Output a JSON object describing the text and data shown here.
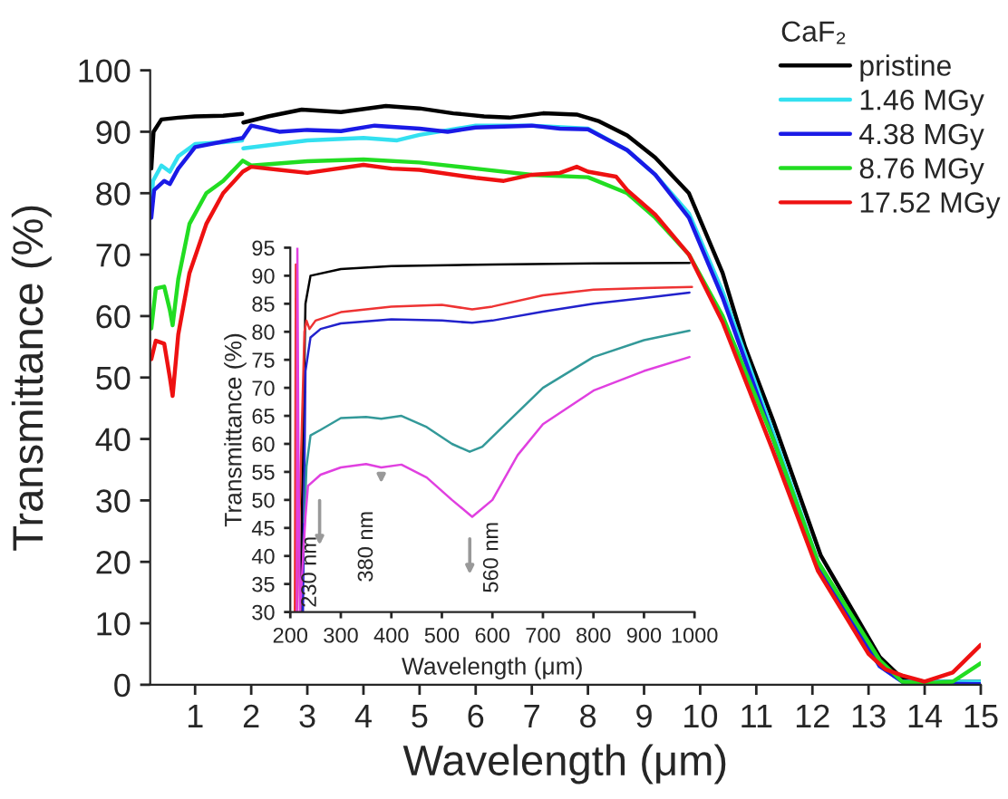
{
  "chart_data": [
    {
      "type": "line",
      "xlabel": "Wavelength (μm)",
      "ylabel": "Transmittance (%)",
      "legend_title": "CaF₂",
      "legend": "top right",
      "xlim": [
        0.2,
        15
      ],
      "xticks": [
        1,
        2,
        3,
        4,
        5,
        6,
        7,
        8,
        9,
        10,
        11,
        12,
        13,
        14,
        15
      ],
      "ylim": [
        0,
        100
      ],
      "yticks": [
        0,
        10,
        20,
        30,
        40,
        50,
        60,
        70,
        80,
        90,
        100
      ],
      "series": [
        {
          "name": "pristine",
          "color": "#000000",
          "x": [
            0.22,
            0.26,
            0.4,
            0.7,
            1.0,
            1.5,
            1.84,
            1.85,
            1.86,
            2.3,
            2.9,
            3.6,
            4.4,
            5.0,
            5.6,
            6.15,
            6.6,
            7.2,
            7.8,
            8.2,
            8.7,
            9.2,
            9.8,
            10.4,
            10.8,
            11.3,
            12.15,
            13.2,
            13.6,
            14.0,
            15.0
          ],
          "values": [
            84,
            90,
            92,
            92.3,
            92.5,
            92.6,
            92.9,
            null,
            91.5,
            92.5,
            93.6,
            93.2,
            94.2,
            93.8,
            93,
            92.5,
            92.3,
            93,
            92.8,
            91.7,
            89.4,
            85.8,
            80,
            67,
            55,
            43,
            21,
            4.5,
            1,
            0.5,
            0.5
          ]
        },
        {
          "name": "1.46 MGy",
          "color": "#33e0f0",
          "x": [
            0.22,
            0.25,
            0.4,
            0.55,
            0.7,
            1.0,
            1.5,
            1.84,
            1.85,
            1.86,
            3.0,
            4.0,
            4.6,
            5.0,
            6.0,
            7.0,
            8.0,
            8.7,
            9.2,
            9.8,
            10.4,
            11.3,
            12.1,
            13.2,
            13.6,
            15.0
          ],
          "values": [
            78,
            82,
            84.5,
            83.5,
            86,
            88,
            88.3,
            88.6,
            null,
            87.3,
            88.6,
            89,
            88.6,
            89.5,
            91,
            91,
            90.5,
            87,
            83,
            76.7,
            64,
            41,
            20,
            3,
            0.5,
            0.5
          ]
        },
        {
          "name": "4.38 MGy",
          "color": "#1a1ae6",
          "x": [
            0.22,
            0.27,
            0.45,
            0.55,
            0.7,
            1.0,
            1.5,
            1.85,
            2.0,
            2.5,
            3.0,
            3.6,
            4.2,
            5.0,
            5.5,
            6.0,
            7.0,
            7.5,
            8.0,
            8.7,
            9.2,
            9.8,
            10.4,
            11.3,
            12.1,
            13.2,
            13.6,
            14.0,
            15.0
          ],
          "values": [
            76,
            80.5,
            82,
            81.5,
            84,
            87.5,
            88.4,
            89,
            91,
            90,
            90.3,
            90.1,
            91,
            90.5,
            90,
            90.7,
            91,
            90.5,
            90.4,
            87,
            83,
            76,
            63,
            40,
            19.5,
            3,
            0.5,
            0.2,
            0.1
          ]
        },
        {
          "name": "8.76 MGy",
          "color": "#22dd22",
          "x": [
            0.22,
            0.3,
            0.45,
            0.55,
            0.6,
            0.7,
            0.9,
            1.2,
            1.5,
            1.85,
            2.0,
            3.0,
            4.0,
            5.0,
            6.0,
            7.0,
            8.0,
            8.7,
            9.2,
            9.8,
            10.4,
            11.3,
            12.1,
            13.2,
            13.6,
            14.0,
            14.5,
            15.0
          ],
          "values": [
            58,
            64.5,
            64.8,
            61,
            58.5,
            66,
            75,
            80,
            82,
            85.3,
            84.5,
            85.2,
            85.5,
            85,
            84,
            83,
            82.6,
            80,
            76,
            70,
            60,
            40,
            20,
            4,
            0.5,
            0.2,
            0.5,
            3.5
          ]
        },
        {
          "name": "17.52 MGy",
          "color": "#ee1111",
          "x": [
            0.22,
            0.3,
            0.45,
            0.55,
            0.6,
            0.7,
            0.9,
            1.2,
            1.5,
            1.85,
            2.0,
            2.5,
            3.0,
            4.0,
            4.5,
            5.0,
            6.0,
            6.5,
            7.0,
            7.5,
            7.8,
            8.0,
            8.5,
            8.7,
            9.2,
            9.8,
            10.4,
            11.3,
            12.1,
            13.0,
            13.3,
            13.6,
            14.0,
            14.5,
            15.0
          ],
          "values": [
            53,
            56,
            55.5,
            50,
            47,
            57,
            67,
            75,
            80,
            83.5,
            84.3,
            83.8,
            83.3,
            84.6,
            84,
            83.8,
            82.5,
            82,
            83,
            83.3,
            84.3,
            83.5,
            82.7,
            80.5,
            76.5,
            70,
            59,
            38,
            18.5,
            5,
            2.5,
            1.5,
            0.5,
            2,
            6.5
          ]
        }
      ]
    },
    {
      "type": "line",
      "xlabel": "Wavelength (μm)",
      "ylabel": "Transmittance (%)",
      "xlim": [
        200,
        1000
      ],
      "xticks": [
        200,
        300,
        400,
        500,
        600,
        700,
        800,
        900,
        1000
      ],
      "ylim": [
        30,
        95
      ],
      "yticks": [
        30,
        35,
        40,
        45,
        50,
        55,
        60,
        65,
        70,
        75,
        80,
        85,
        90,
        95
      ],
      "annotations": [
        "230 nm",
        "380 nm",
        "560 nm"
      ],
      "series": [
        {
          "color": "#000000",
          "x": [
            220,
            225,
            230,
            240,
            300,
            400,
            600,
            800,
            990
          ],
          "values": [
            30,
            60,
            85,
            90,
            91.2,
            91.7,
            92,
            92.2,
            92.3
          ]
        },
        {
          "color": "#ee3333",
          "x": [
            209,
            211,
            213,
            228,
            232,
            238,
            250,
            300,
            400,
            500,
            560,
            600,
            700,
            800,
            900,
            995
          ],
          "values": [
            30,
            92,
            30,
            80,
            82,
            80.5,
            82,
            83.5,
            84.5,
            84.8,
            84,
            84.5,
            86.5,
            87.5,
            87.8,
            88
          ]
        },
        {
          "color": "#2222cc",
          "x": [
            225,
            230,
            240,
            260,
            300,
            400,
            500,
            560,
            600,
            700,
            800,
            900,
            990
          ],
          "values": [
            30,
            73,
            79,
            80.5,
            81.5,
            82.2,
            82,
            81.6,
            82,
            83.6,
            85,
            86,
            87
          ]
        },
        {
          "color": "#339999",
          "x": [
            228,
            232,
            240,
            260,
            300,
            350,
            380,
            420,
            470,
            520,
            555,
            580,
            620,
            700,
            800,
            900,
            990
          ],
          "values": [
            46,
            56,
            61.5,
            62.5,
            64.6,
            64.8,
            64.5,
            65,
            63,
            60,
            58.6,
            59.5,
            63,
            70,
            75.5,
            78.5,
            80.2
          ]
        },
        {
          "color": "#e040e0",
          "x": [
            213,
            214,
            216,
            219,
            230,
            235,
            260,
            300,
            350,
            380,
            420,
            470,
            520,
            560,
            600,
            650,
            700,
            800,
            900,
            990
          ],
          "values": [
            30,
            95,
            60,
            30,
            47,
            52.5,
            54.5,
            55.8,
            56.4,
            55.8,
            56.3,
            54,
            50,
            47,
            50,
            58,
            63.5,
            69.5,
            73,
            75.5
          ]
        }
      ]
    }
  ]
}
